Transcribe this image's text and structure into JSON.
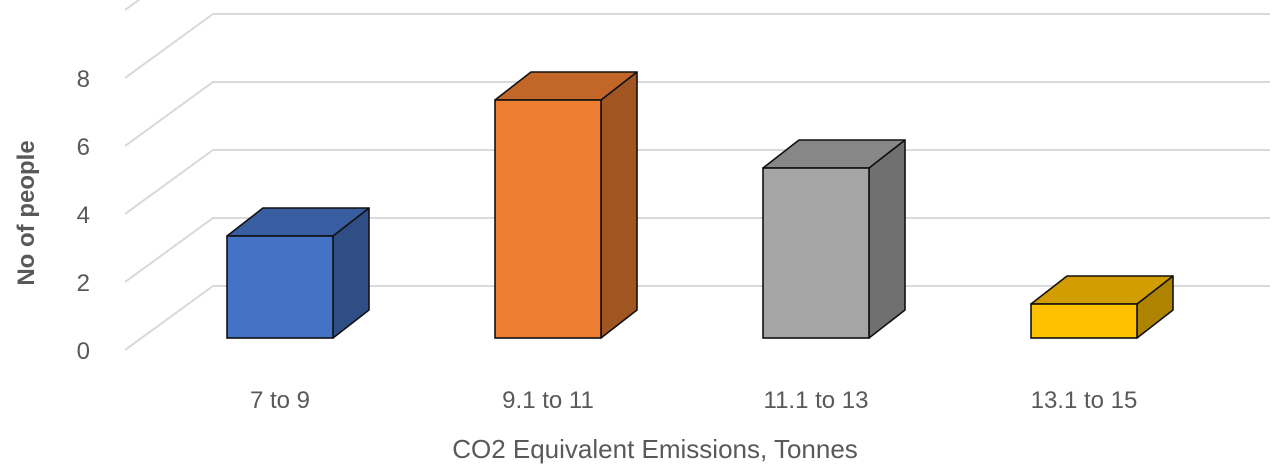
{
  "chart_data": {
    "type": "bar",
    "style": "3d-column",
    "categories": [
      "7 to 9",
      "9.1 to 11",
      "11.1 to 13",
      "13.1 to 15"
    ],
    "values": [
      3,
      7,
      5,
      1
    ],
    "xlabel": "CO2 Equivalent Emissions, Tonnes",
    "ylabel": "No of people",
    "ylim": [
      0,
      8
    ],
    "yticks": [
      0,
      2,
      4,
      6,
      8
    ],
    "ytick_labels": [
      "0",
      "2",
      "4",
      "6",
      "8"
    ],
    "grid": true,
    "legend": "none",
    "bar_colors": [
      "#4472C4",
      "#ED7D31",
      "#A5A5A5",
      "#FFC000"
    ]
  }
}
